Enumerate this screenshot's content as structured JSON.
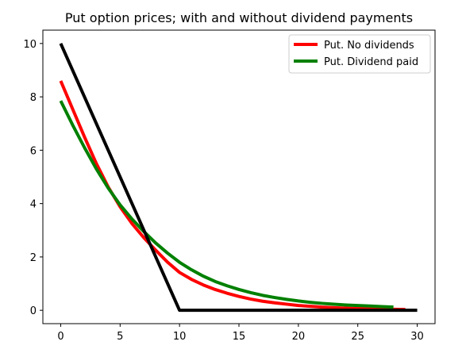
{
  "chart_data": {
    "type": "line",
    "title": "Put option prices; with and without dividend payments",
    "xlabel": "",
    "ylabel": "",
    "xlim": [
      -1.5,
      31.5
    ],
    "ylim": [
      -0.5,
      10.5
    ],
    "xticks": [
      0,
      5,
      10,
      15,
      20,
      25,
      30
    ],
    "yticks": [
      0,
      2,
      4,
      6,
      8,
      10
    ],
    "grid": false,
    "legend_position": "top-right",
    "series": [
      {
        "name": "Put. No dividends",
        "color": "#ff0000",
        "in_legend": true,
        "x": [
          0,
          1,
          2,
          3,
          4,
          5,
          6,
          7,
          8,
          9,
          10,
          11,
          12,
          13,
          14,
          15,
          16,
          17,
          18,
          19,
          20,
          21,
          22,
          23,
          24,
          25,
          26,
          27,
          28,
          29
        ],
        "y": [
          8.6,
          7.55,
          6.5,
          5.5,
          4.62,
          3.88,
          3.25,
          2.72,
          2.25,
          1.8,
          1.42,
          1.16,
          0.95,
          0.78,
          0.64,
          0.52,
          0.42,
          0.34,
          0.28,
          0.23,
          0.18,
          0.15,
          0.12,
          0.1,
          0.08,
          0.07,
          0.06,
          0.05,
          0.04,
          0.03
        ]
      },
      {
        "name": "Put. Dividend paid",
        "color": "#008000",
        "in_legend": true,
        "x": [
          0,
          1,
          2,
          3,
          4,
          5,
          6,
          7,
          8,
          9,
          10,
          11,
          12,
          13,
          14,
          15,
          16,
          17,
          18,
          19,
          20,
          21,
          22,
          23,
          24,
          25,
          26,
          27,
          28
        ],
        "y": [
          7.85,
          6.95,
          6.1,
          5.3,
          4.58,
          3.95,
          3.42,
          2.95,
          2.52,
          2.14,
          1.8,
          1.52,
          1.28,
          1.08,
          0.92,
          0.78,
          0.66,
          0.56,
          0.48,
          0.41,
          0.35,
          0.3,
          0.26,
          0.23,
          0.2,
          0.18,
          0.16,
          0.14,
          0.12
        ]
      },
      {
        "name": "",
        "color": "#000000",
        "in_legend": false,
        "x": [
          0,
          10,
          30
        ],
        "y": [
          10,
          0,
          0
        ]
      }
    ]
  }
}
